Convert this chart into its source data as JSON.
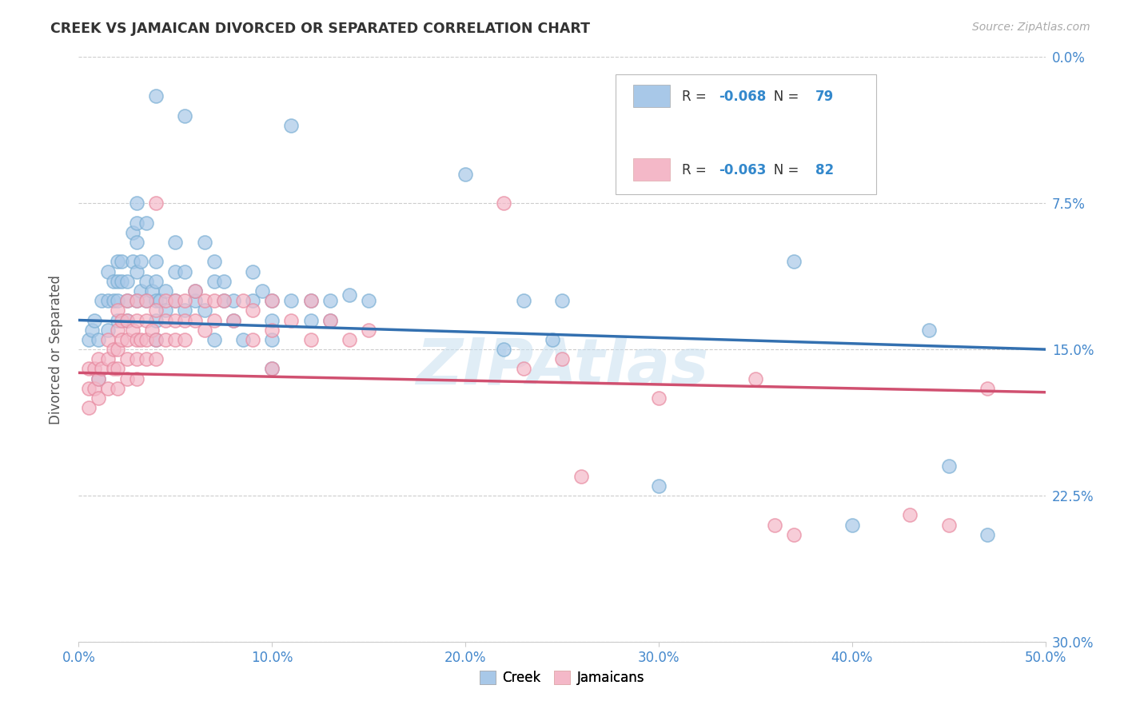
{
  "title": "CREEK VS JAMAICAN DIVORCED OR SEPARATED CORRELATION CHART",
  "source": "Source: ZipAtlas.com",
  "ylabel": "Divorced or Separated",
  "xlabel_ticks": [
    "0.0%",
    "10.0%",
    "20.0%",
    "30.0%",
    "40.0%",
    "50.0%"
  ],
  "ylabel_ticks_right": [
    "30.0%",
    "22.5%",
    "15.0%",
    "7.5%",
    "0.0%"
  ],
  "xlim": [
    0.0,
    0.5
  ],
  "ylim": [
    0.0,
    0.3
  ],
  "creek_color": "#a8c8e8",
  "jamaican_color": "#f4b8c8",
  "creek_edge_color": "#7aafd4",
  "jamaican_edge_color": "#e88aa0",
  "creek_line_color": "#3370b0",
  "jamaican_line_color": "#d05070",
  "creek_R": "-0.068",
  "creek_N": "79",
  "jamaican_R": "-0.063",
  "jamaican_N": "82",
  "watermark": "ZIPAtlas",
  "creek_line_y0": 0.165,
  "creek_line_y1": 0.15,
  "jamaican_line_y0": 0.138,
  "jamaican_line_y1": 0.128,
  "creek_points": [
    [
      0.005,
      0.155
    ],
    [
      0.007,
      0.16
    ],
    [
      0.008,
      0.165
    ],
    [
      0.01,
      0.135
    ],
    [
      0.01,
      0.155
    ],
    [
      0.012,
      0.175
    ],
    [
      0.015,
      0.16
    ],
    [
      0.015,
      0.175
    ],
    [
      0.015,
      0.19
    ],
    [
      0.018,
      0.175
    ],
    [
      0.018,
      0.185
    ],
    [
      0.02,
      0.165
    ],
    [
      0.02,
      0.175
    ],
    [
      0.02,
      0.185
    ],
    [
      0.02,
      0.195
    ],
    [
      0.022,
      0.185
    ],
    [
      0.022,
      0.195
    ],
    [
      0.025,
      0.165
    ],
    [
      0.025,
      0.175
    ],
    [
      0.025,
      0.185
    ],
    [
      0.028,
      0.195
    ],
    [
      0.028,
      0.21
    ],
    [
      0.03,
      0.175
    ],
    [
      0.03,
      0.19
    ],
    [
      0.03,
      0.205
    ],
    [
      0.03,
      0.215
    ],
    [
      0.03,
      0.225
    ],
    [
      0.032,
      0.18
    ],
    [
      0.032,
      0.195
    ],
    [
      0.035,
      0.175
    ],
    [
      0.035,
      0.185
    ],
    [
      0.035,
      0.215
    ],
    [
      0.038,
      0.18
    ],
    [
      0.04,
      0.155
    ],
    [
      0.04,
      0.165
    ],
    [
      0.04,
      0.175
    ],
    [
      0.04,
      0.185
    ],
    [
      0.04,
      0.195
    ],
    [
      0.04,
      0.28
    ],
    [
      0.042,
      0.175
    ],
    [
      0.045,
      0.17
    ],
    [
      0.045,
      0.18
    ],
    [
      0.05,
      0.175
    ],
    [
      0.05,
      0.19
    ],
    [
      0.05,
      0.205
    ],
    [
      0.055,
      0.17
    ],
    [
      0.055,
      0.19
    ],
    [
      0.055,
      0.27
    ],
    [
      0.06,
      0.175
    ],
    [
      0.06,
      0.18
    ],
    [
      0.065,
      0.17
    ],
    [
      0.065,
      0.205
    ],
    [
      0.07,
      0.155
    ],
    [
      0.07,
      0.185
    ],
    [
      0.07,
      0.195
    ],
    [
      0.075,
      0.175
    ],
    [
      0.075,
      0.185
    ],
    [
      0.08,
      0.165
    ],
    [
      0.08,
      0.175
    ],
    [
      0.085,
      0.155
    ],
    [
      0.09,
      0.175
    ],
    [
      0.09,
      0.19
    ],
    [
      0.095,
      0.18
    ],
    [
      0.1,
      0.14
    ],
    [
      0.1,
      0.155
    ],
    [
      0.1,
      0.165
    ],
    [
      0.1,
      0.175
    ],
    [
      0.11,
      0.175
    ],
    [
      0.11,
      0.265
    ],
    [
      0.12,
      0.165
    ],
    [
      0.12,
      0.175
    ],
    [
      0.13,
      0.165
    ],
    [
      0.13,
      0.175
    ],
    [
      0.14,
      0.178
    ],
    [
      0.15,
      0.175
    ],
    [
      0.2,
      0.24
    ],
    [
      0.22,
      0.15
    ],
    [
      0.23,
      0.175
    ],
    [
      0.245,
      0.155
    ],
    [
      0.25,
      0.175
    ],
    [
      0.3,
      0.08
    ],
    [
      0.37,
      0.195
    ],
    [
      0.4,
      0.06
    ],
    [
      0.44,
      0.16
    ],
    [
      0.45,
      0.09
    ],
    [
      0.47,
      0.055
    ]
  ],
  "jamaican_points": [
    [
      0.005,
      0.12
    ],
    [
      0.005,
      0.13
    ],
    [
      0.005,
      0.14
    ],
    [
      0.008,
      0.13
    ],
    [
      0.008,
      0.14
    ],
    [
      0.01,
      0.125
    ],
    [
      0.01,
      0.135
    ],
    [
      0.01,
      0.145
    ],
    [
      0.012,
      0.14
    ],
    [
      0.015,
      0.13
    ],
    [
      0.015,
      0.145
    ],
    [
      0.015,
      0.155
    ],
    [
      0.018,
      0.14
    ],
    [
      0.018,
      0.15
    ],
    [
      0.02,
      0.13
    ],
    [
      0.02,
      0.14
    ],
    [
      0.02,
      0.15
    ],
    [
      0.02,
      0.16
    ],
    [
      0.02,
      0.17
    ],
    [
      0.022,
      0.155
    ],
    [
      0.022,
      0.165
    ],
    [
      0.025,
      0.135
    ],
    [
      0.025,
      0.145
    ],
    [
      0.025,
      0.155
    ],
    [
      0.025,
      0.165
    ],
    [
      0.025,
      0.175
    ],
    [
      0.028,
      0.16
    ],
    [
      0.03,
      0.135
    ],
    [
      0.03,
      0.145
    ],
    [
      0.03,
      0.155
    ],
    [
      0.03,
      0.165
    ],
    [
      0.03,
      0.175
    ],
    [
      0.032,
      0.155
    ],
    [
      0.035,
      0.145
    ],
    [
      0.035,
      0.155
    ],
    [
      0.035,
      0.165
    ],
    [
      0.035,
      0.175
    ],
    [
      0.038,
      0.16
    ],
    [
      0.04,
      0.145
    ],
    [
      0.04,
      0.155
    ],
    [
      0.04,
      0.17
    ],
    [
      0.04,
      0.225
    ],
    [
      0.045,
      0.155
    ],
    [
      0.045,
      0.165
    ],
    [
      0.045,
      0.175
    ],
    [
      0.05,
      0.155
    ],
    [
      0.05,
      0.165
    ],
    [
      0.05,
      0.175
    ],
    [
      0.055,
      0.155
    ],
    [
      0.055,
      0.165
    ],
    [
      0.055,
      0.175
    ],
    [
      0.06,
      0.165
    ],
    [
      0.06,
      0.18
    ],
    [
      0.065,
      0.16
    ],
    [
      0.065,
      0.175
    ],
    [
      0.07,
      0.165
    ],
    [
      0.07,
      0.175
    ],
    [
      0.075,
      0.175
    ],
    [
      0.08,
      0.165
    ],
    [
      0.085,
      0.175
    ],
    [
      0.09,
      0.155
    ],
    [
      0.09,
      0.17
    ],
    [
      0.1,
      0.14
    ],
    [
      0.1,
      0.16
    ],
    [
      0.1,
      0.175
    ],
    [
      0.11,
      0.165
    ],
    [
      0.12,
      0.155
    ],
    [
      0.12,
      0.175
    ],
    [
      0.13,
      0.165
    ],
    [
      0.14,
      0.155
    ],
    [
      0.15,
      0.16
    ],
    [
      0.22,
      0.225
    ],
    [
      0.23,
      0.14
    ],
    [
      0.25,
      0.145
    ],
    [
      0.26,
      0.085
    ],
    [
      0.3,
      0.125
    ],
    [
      0.35,
      0.135
    ],
    [
      0.36,
      0.06
    ],
    [
      0.37,
      0.055
    ],
    [
      0.43,
      0.065
    ],
    [
      0.45,
      0.06
    ],
    [
      0.47,
      0.13
    ]
  ]
}
